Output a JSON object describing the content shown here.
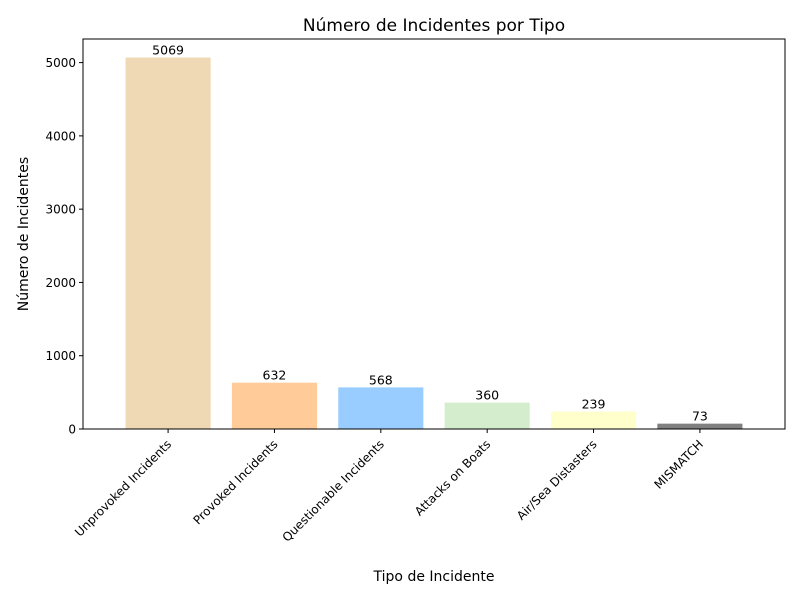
{
  "chart_data": {
    "type": "bar",
    "title": "Número de Incidentes por Tipo",
    "xlabel": "Tipo de Incidente",
    "ylabel": "Número de Incidentes",
    "categories": [
      "Unprovoked Incidents",
      "Provoked Incidents",
      "Questionable Incidents",
      "Attacks on Boats",
      "Air/Sea Distasters",
      "MISMATCH"
    ],
    "values": [
      5069,
      632,
      568,
      360,
      239,
      73
    ],
    "data_labels": [
      "5069",
      "632",
      "568",
      "360",
      "239",
      "73"
    ],
    "colors": [
      "#EED9B4",
      "#FFCC99",
      "#99CCFF",
      "#D4EDCC",
      "#FFFFCC",
      "#808080"
    ],
    "yticks": [
      0,
      1000,
      2000,
      3000,
      4000,
      5000
    ],
    "ylim": [
      0,
      5322
    ],
    "grid": false,
    "legend": "none"
  }
}
